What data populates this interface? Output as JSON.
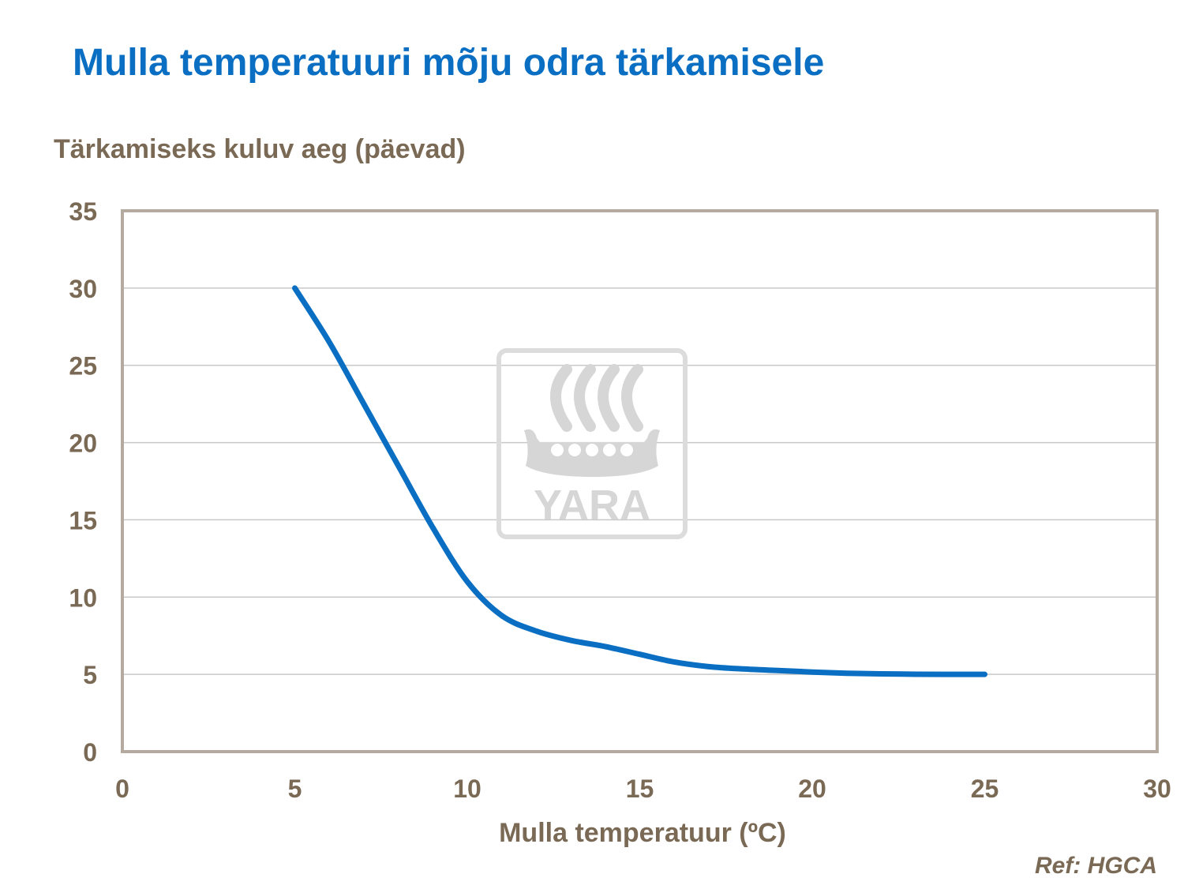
{
  "title": "Mulla temperatuuri mõju odra tärkamisele",
  "watermark": {
    "text": "YARA",
    "icon": "yara-viking-ship-logo"
  },
  "ref": "Ref: HGCA",
  "colors": {
    "title": "#0a6fc2",
    "line": "#0a6fc2",
    "axis_text": "#7a6a55",
    "frame": "#b5aaa0",
    "grid": "#c8c8c8"
  },
  "chart_data": {
    "type": "line",
    "title": "Mulla temperatuuri mõju odra tärkamisele",
    "xlabel": "Mulla temperatuur (ºC)",
    "ylabel": "Tärkamiseks kuluv aeg (päevad)",
    "xlim": [
      0,
      30
    ],
    "ylim": [
      0,
      35
    ],
    "xticks": [
      0,
      5,
      10,
      15,
      20,
      25,
      30
    ],
    "yticks": [
      0,
      5,
      10,
      15,
      20,
      25,
      30,
      35
    ],
    "grid": true,
    "series": [
      {
        "name": "Tärkamiseks kuluv aeg",
        "x": [
          5,
          6,
          7,
          8,
          9,
          10,
          11,
          12,
          13,
          14,
          15,
          16,
          17,
          18,
          19,
          20,
          21,
          22,
          23,
          24,
          25
        ],
        "y": [
          30,
          26.5,
          22.5,
          18.5,
          14.5,
          11,
          8.8,
          7.8,
          7.2,
          6.8,
          6.3,
          5.8,
          5.5,
          5.35,
          5.25,
          5.15,
          5.07,
          5.03,
          5.01,
          5.0,
          5.0
        ]
      }
    ]
  }
}
